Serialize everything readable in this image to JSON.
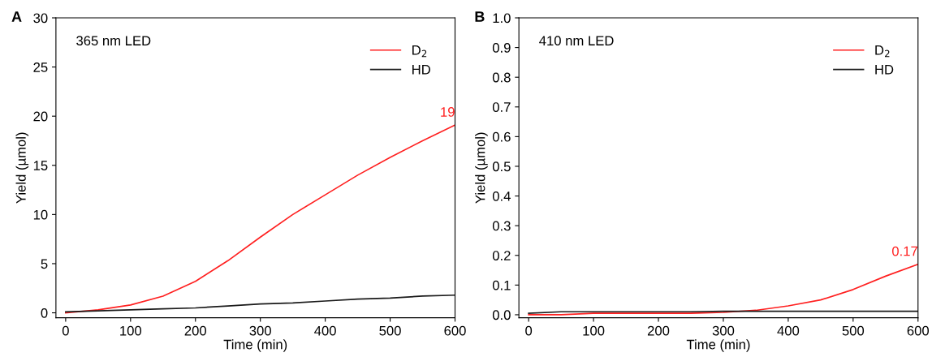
{
  "chart_data": [
    {
      "type": "line",
      "xlabel": "Time (min)",
      "ylabel": "Yield (µmol)",
      "xlim": [
        -15,
        600
      ],
      "ylim": [
        -0.5,
        30
      ],
      "xticks": [
        0,
        100,
        200,
        300,
        400,
        500,
        600
      ],
      "yticks": [
        0,
        5,
        10,
        15,
        20,
        25,
        30
      ],
      "legend": "top right",
      "grid": false,
      "x": [
        0,
        50,
        100,
        150,
        200,
        250,
        300,
        350,
        400,
        450,
        500,
        550,
        600
      ],
      "annotations": [
        "A",
        "365 nm LED",
        {
          "text": "19",
          "x": 600,
          "y": 19.1
        }
      ],
      "series": [
        {
          "name": "D$_{2}$",
          "color": "#ff2020",
          "values": [
            0,
            0.3,
            0.8,
            1.7,
            3.2,
            5.3,
            7.7,
            10.0,
            12.0,
            14.0,
            15.8,
            17.5,
            19.1
          ]
        },
        {
          "name": "HD",
          "color": "#1a1a1a",
          "values": [
            0.1,
            0.2,
            0.3,
            0.4,
            0.5,
            0.7,
            0.9,
            1.0,
            1.2,
            1.4,
            1.5,
            1.7,
            1.8
          ]
        }
      ]
    },
    {
      "type": "line",
      "xlabel": "Time (min)",
      "ylabel": "Yield (µmol)",
      "xlim": [
        -15,
        600
      ],
      "ylim": [
        -0.01,
        1.0
      ],
      "xticks": [
        0,
        100,
        200,
        300,
        400,
        500,
        600
      ],
      "yticks": [
        {
          "value": 0,
          "label": "0.0"
        },
        0.1,
        0.2,
        0.3,
        0.4,
        0.5,
        0.6,
        0.7,
        0.8,
        0.9,
        {
          "value": 1,
          "label": "1.0"
        }
      ],
      "legend": "top right",
      "grid": false,
      "x": [
        0,
        50,
        100,
        150,
        200,
        250,
        300,
        350,
        400,
        450,
        500,
        550,
        600
      ],
      "annotations": [
        "B",
        "410 nm LED",
        {
          "text": "0.17",
          "x": 600,
          "y": 0.17
        }
      ],
      "series": [
        {
          "name": "D$_{2}$",
          "color": "#ff2020",
          "values": [
            0.0,
            0.0,
            0.005,
            0.005,
            0.005,
            0.005,
            0.008,
            0.015,
            0.03,
            0.05,
            0.085,
            0.13,
            0.17
          ]
        },
        {
          "name": "HD",
          "color": "#1a1a1a",
          "values": [
            0.005,
            0.01,
            0.01,
            0.01,
            0.01,
            0.01,
            0.012,
            0.012,
            0.012,
            0.012,
            0.012,
            0.012,
            0.012
          ]
        }
      ]
    }
  ]
}
